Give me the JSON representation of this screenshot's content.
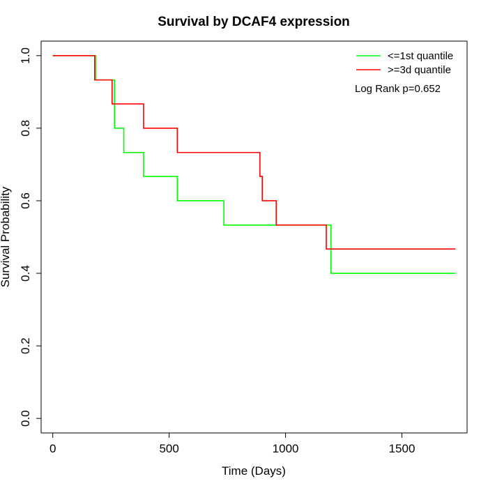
{
  "chart_data": {
    "type": "line",
    "title": "Survival by DCAF4 expression",
    "xlabel": "Time (Days)",
    "ylabel": "Survival Probability",
    "xlim": [
      -50,
      1780
    ],
    "ylim": [
      -0.04,
      1.04
    ],
    "x_ticks": [
      0,
      500,
      1000,
      1500
    ],
    "x_tick_labels": [
      "0",
      "500",
      "1000",
      "1500"
    ],
    "y_ticks": [
      0.0,
      0.2,
      0.4,
      0.6,
      0.8,
      1.0
    ],
    "y_tick_labels": [
      "0.0",
      "0.2",
      "0.4",
      "0.6",
      "0.8",
      "1.0"
    ],
    "grid": false,
    "legend_position": "top-right",
    "annotation": "Log Rank p=0.652",
    "series": [
      {
        "name": "<=1st quantile",
        "color": "#00ff00",
        "step": true,
        "x": [
          0,
          185,
          265,
          305,
          390,
          535,
          735,
          1195,
          1730
        ],
        "y": [
          1.0,
          0.933,
          0.8,
          0.733,
          0.667,
          0.6,
          0.533,
          0.4,
          0.4
        ]
      },
      {
        "name": ">=3d quantile",
        "color": "#ff0000",
        "step": true,
        "x": [
          0,
          180,
          255,
          390,
          535,
          890,
          900,
          960,
          1175,
          1730
        ],
        "y": [
          1.0,
          0.933,
          0.867,
          0.8,
          0.733,
          0.667,
          0.6,
          0.533,
          0.467,
          0.467
        ]
      }
    ]
  }
}
